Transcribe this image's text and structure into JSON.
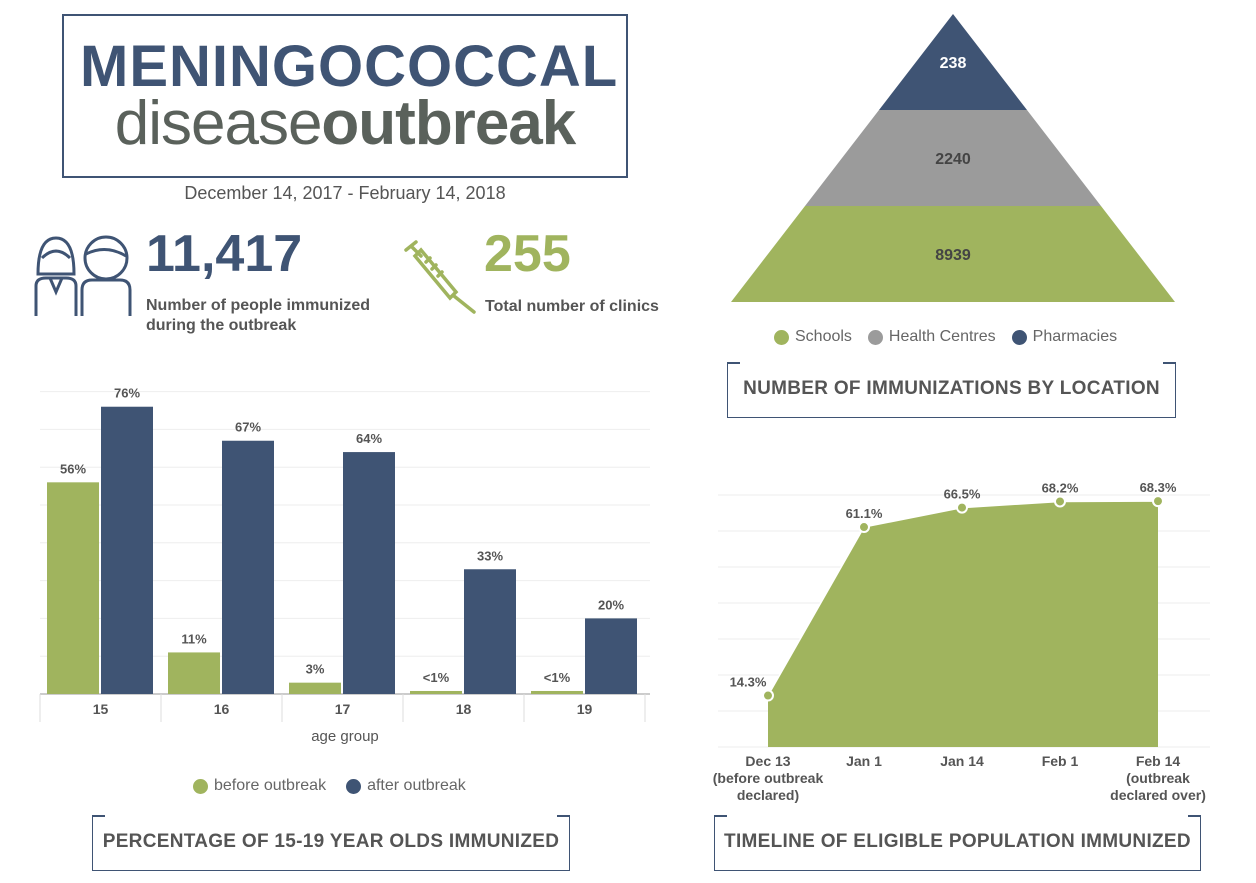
{
  "header": {
    "title_line1": "MENINGOCOCCAL",
    "title_line2_light": "disease",
    "title_line2_bold": "outbreak",
    "date_range": "December 14, 2017 - February 14, 2018"
  },
  "stats": [
    {
      "icon": "people-icon",
      "value": "11,417",
      "label_line1": "Number of people immunized",
      "label_line2": "during the outbreak",
      "color": "#3f5474"
    },
    {
      "icon": "syringe-icon",
      "value": "255",
      "label_line1": "Total number of clinics",
      "color": "#a0b45e"
    }
  ],
  "colors": {
    "green": "#a0b45e",
    "navy": "#3f5474",
    "gray": "#9b9b9b"
  },
  "chart_data": [
    {
      "type": "bar",
      "title": "PERCENTAGE OF 15-19 YEAR OLDS IMMUNIZED",
      "xlabel": "age group",
      "ylabel": "",
      "categories": [
        "15",
        "16",
        "17",
        "18",
        "19"
      ],
      "ylim": [
        0,
        80
      ],
      "grid": true,
      "series": [
        {
          "name": "before outbreak",
          "values": [
            56,
            11,
            3,
            0.8,
            0.8
          ],
          "labels": [
            "56%",
            "11%",
            "3%",
            "<1%",
            "<1%"
          ],
          "color": "#a0b45e"
        },
        {
          "name": "after outbreak",
          "values": [
            76,
            67,
            64,
            33,
            20
          ],
          "labels": [
            "76%",
            "67%",
            "64%",
            "33%",
            "20%"
          ],
          "color": "#3f5474"
        }
      ],
      "legend": "bottom"
    },
    {
      "type": "pyramid",
      "title": "NUMBER OF IMMUNIZATIONS BY LOCATION",
      "segments": [
        {
          "name": "Pharmacies",
          "value": 238,
          "color": "#3f5474"
        },
        {
          "name": "Health Centres",
          "value": 2240,
          "color": "#9b9b9b"
        },
        {
          "name": "Schools",
          "value": 8939,
          "color": "#a0b45e"
        }
      ],
      "legend_order": [
        "Schools",
        "Health Centres",
        "Pharmacies"
      ],
      "legend": "bottom"
    },
    {
      "type": "area",
      "title": "TIMELINE OF ELIGIBLE POPULATION IMMUNIZED",
      "ylim": [
        0,
        70
      ],
      "grid": true,
      "x": [
        [
          "Dec 13",
          "(before outbreak",
          "declared)"
        ],
        [
          "Jan 1"
        ],
        [
          "Jan 14"
        ],
        [
          "Feb 1"
        ],
        [
          "Feb 14",
          "(outbreak",
          "declared over)"
        ]
      ],
      "values": [
        14.3,
        61.1,
        66.5,
        68.2,
        68.3
      ],
      "labels": [
        "14.3%",
        "61.1%",
        "66.5%",
        "68.2%",
        "68.3%"
      ],
      "color": "#a0b45e"
    }
  ]
}
